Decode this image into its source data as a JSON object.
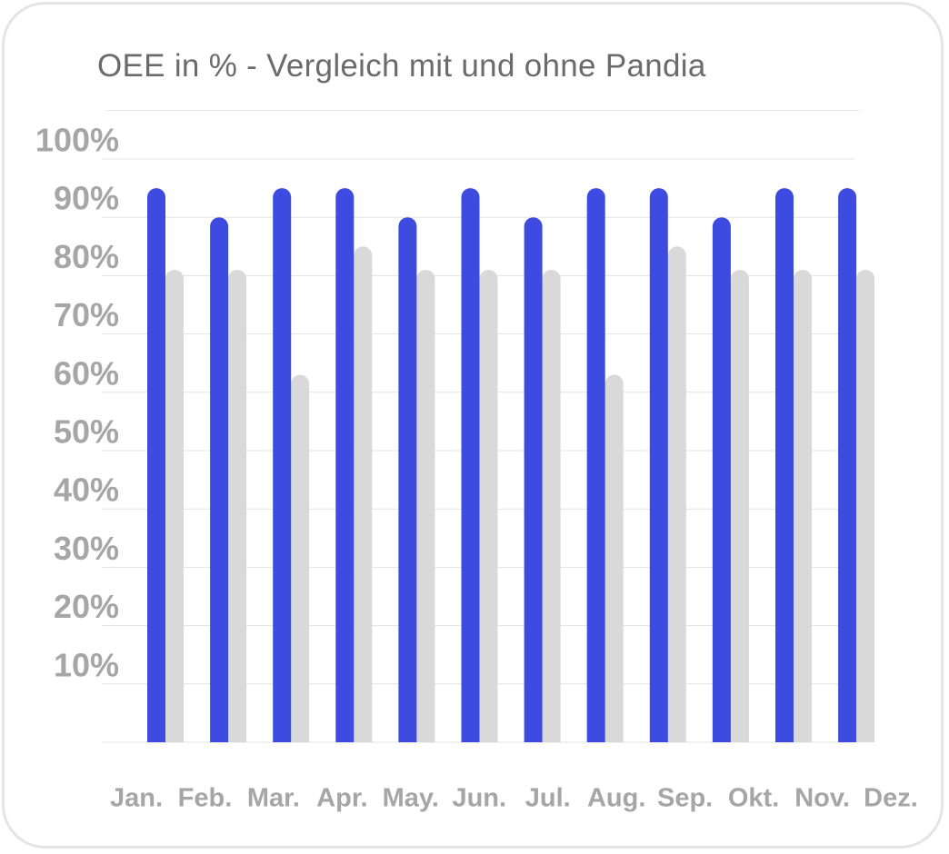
{
  "chart_data": {
    "type": "bar",
    "title": "OEE in % - Vergleich mit und ohne Pandia",
    "xlabel": "",
    "ylabel": "",
    "categories": [
      "Jan.",
      "Feb.",
      "Mar.",
      "Apr.",
      "May.",
      "Jun.",
      "Jul.",
      "Aug.",
      "Sep.",
      "Okt.",
      "Nov.",
      "Dez."
    ],
    "y_ticks": [
      {
        "value": 10,
        "label": "10%"
      },
      {
        "value": 20,
        "label": "20%"
      },
      {
        "value": 30,
        "label": "30%"
      },
      {
        "value": 40,
        "label": "40%"
      },
      {
        "value": 50,
        "label": "50%"
      },
      {
        "value": 60,
        "label": "60%"
      },
      {
        "value": 70,
        "label": "70%"
      },
      {
        "value": 80,
        "label": "80%"
      },
      {
        "value": 90,
        "label": "90%"
      },
      {
        "value": 100,
        "label": "100%"
      }
    ],
    "ylim": [
      0,
      100
    ],
    "grid": true,
    "legend": "none",
    "series": [
      {
        "color": "#3d4be0",
        "values": [
          95,
          90,
          95,
          95,
          90,
          95,
          90,
          95,
          95,
          90,
          95,
          95
        ]
      },
      {
        "color": "#d9d9d9",
        "values": [
          81,
          81,
          63,
          85,
          81,
          81,
          81,
          63,
          85,
          81,
          81,
          81
        ]
      }
    ]
  }
}
